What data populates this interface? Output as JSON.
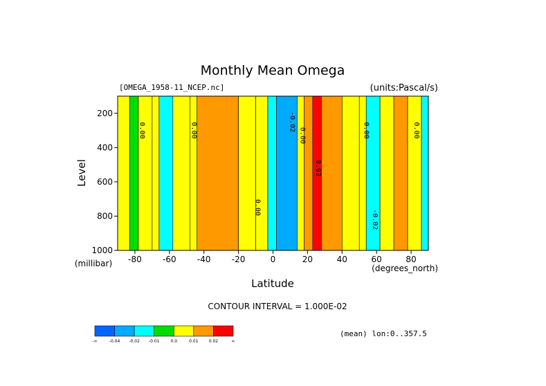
{
  "chart_data": {
    "type": "heatmap",
    "title": "Monthly Mean Omega",
    "file_label": "[OMEGA_1958-11_NCEP.nc]",
    "units_label": "(units:Pascal/s)",
    "xlabel": "Latitude",
    "ylabel": "Level",
    "x_unit_label": "(degrees_north)",
    "y_unit_label": "(millibar)",
    "xlim": [
      -90,
      90
    ],
    "ylim": [
      1000,
      100
    ],
    "x_ticks": [
      -80,
      -60,
      -40,
      -20,
      0,
      20,
      40,
      60,
      80
    ],
    "x_tick_labels": [
      "-80",
      "-60",
      "-40",
      "-20",
      "0",
      "20",
      "40",
      "60",
      "80"
    ],
    "y_ticks": [
      200,
      400,
      600,
      800,
      1000
    ],
    "y_tick_labels": [
      "200",
      "400",
      "600",
      "800",
      "1000"
    ],
    "contour_interval_text": "CONTOUR INTERVAL = 1.000E-02",
    "mean_text": "(mean) lon:0..357.5",
    "contour_labels": [
      {
        "text": "0.00",
        "lat": -77,
        "level": 300
      },
      {
        "text": "0.00",
        "lat": -47,
        "level": 300
      },
      {
        "text": "0.00",
        "lat": -10,
        "level": 750
      },
      {
        "text": "-0.02",
        "lat": 10,
        "level": 250
      },
      {
        "text": "0.00",
        "lat": 16,
        "level": 330
      },
      {
        "text": "0.02",
        "lat": 25,
        "level": 520
      },
      {
        "text": "0.00",
        "lat": 53,
        "level": 300
      },
      {
        "text": "-0.02",
        "lat": 58,
        "level": 820
      },
      {
        "text": "0.00",
        "lat": 82,
        "level": 300
      }
    ],
    "bands": [
      {
        "lat_min": -90,
        "lat_max": -83,
        "value": 0.005
      },
      {
        "lat_min": -83,
        "lat_max": -78,
        "value": -0.005
      },
      {
        "lat_min": -78,
        "lat_max": -70,
        "value": 0.005
      },
      {
        "lat_min": -70,
        "lat_max": -66,
        "value": 0.0
      },
      {
        "lat_min": -66,
        "lat_max": -58,
        "value": -0.015
      },
      {
        "lat_min": -58,
        "lat_max": -48,
        "value": 0.005
      },
      {
        "lat_min": -48,
        "lat_max": -44,
        "value": 0.0
      },
      {
        "lat_min": -44,
        "lat_max": -20,
        "value": 0.015
      },
      {
        "lat_min": -20,
        "lat_max": -10,
        "value": 0.005
      },
      {
        "lat_min": -10,
        "lat_max": -3,
        "value": 0.0
      },
      {
        "lat_min": -3,
        "lat_max": 2,
        "value": -0.015
      },
      {
        "lat_min": 2,
        "lat_max": 14,
        "value": -0.025
      },
      {
        "lat_min": 14,
        "lat_max": 18,
        "value": 0.0
      },
      {
        "lat_min": 18,
        "lat_max": 23,
        "value": 0.015
      },
      {
        "lat_min": 23,
        "lat_max": 28,
        "value": 0.025
      },
      {
        "lat_min": 28,
        "lat_max": 40,
        "value": 0.015
      },
      {
        "lat_min": 40,
        "lat_max": 50,
        "value": 0.005
      },
      {
        "lat_min": 50,
        "lat_max": 54,
        "value": 0.0
      },
      {
        "lat_min": 54,
        "lat_max": 62,
        "value": -0.015
      },
      {
        "lat_min": 62,
        "lat_max": 70,
        "value": 0.005
      },
      {
        "lat_min": 70,
        "lat_max": 78,
        "value": 0.015
      },
      {
        "lat_min": 78,
        "lat_max": 86,
        "value": 0.005
      },
      {
        "lat_min": 86,
        "lat_max": 90,
        "value": -0.015
      }
    ],
    "colorbar": {
      "colors": [
        "#0066ff",
        "#00aaff",
        "#00ffff",
        "#00dd00",
        "#ffff00",
        "#ff9900",
        "#ff0000"
      ],
      "labels": [
        "-∞",
        "-0.04",
        "-0.02",
        "-0.01",
        "0.0",
        "0.01",
        "0.02",
        "∞"
      ]
    }
  }
}
